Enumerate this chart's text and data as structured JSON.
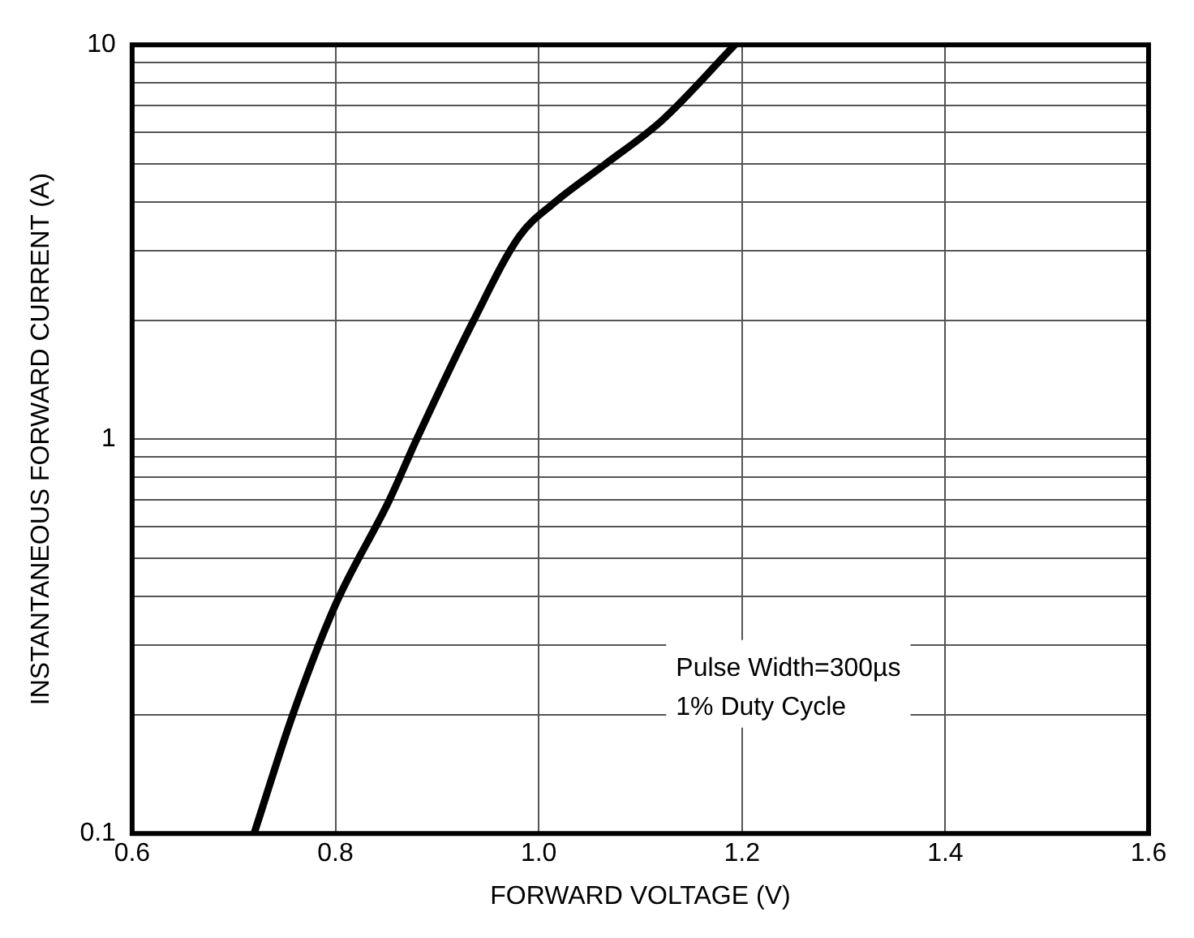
{
  "chart_data": {
    "type": "line",
    "xlabel": "FORWARD VOLTAGE (V)",
    "ylabel": "INSTANTANEOUS FORWARD CURRENT (A)",
    "x": [
      0.72,
      0.758,
      0.8,
      0.853,
      0.88,
      0.936,
      0.981,
      1.015,
      1.065,
      1.121,
      1.193
    ],
    "series": [
      {
        "color": "#000000",
        "values": [
          0.1,
          0.2,
          0.38,
          0.7,
          1,
          2,
          3.27,
          3.97,
          4.97,
          6.42,
          10
        ]
      }
    ],
    "xlim": [
      0.6,
      1.6
    ],
    "xticks": [
      0.6,
      0.8,
      {
        "value": 1,
        "label": "1.0"
      },
      1.2,
      1.4,
      1.6
    ],
    "ylim": [
      0.1,
      10
    ],
    "log": "y",
    "yticks": [
      0.1,
      {
        "value": 0.2,
        "label": null
      },
      {
        "value": 0.3,
        "label": null
      },
      {
        "value": 0.4,
        "label": null
      },
      {
        "value": 0.5,
        "label": null
      },
      {
        "value": 0.6,
        "label": null
      },
      {
        "value": 0.7,
        "label": null
      },
      {
        "value": 0.8,
        "label": null
      },
      {
        "value": 0.9,
        "label": null
      },
      1,
      {
        "value": 2,
        "label": null
      },
      {
        "value": 3,
        "label": null
      },
      {
        "value": 4,
        "label": null
      },
      {
        "value": 5,
        "label": null
      },
      {
        "value": 6,
        "label": null
      },
      {
        "value": 7,
        "label": null
      },
      {
        "value": 8,
        "label": null
      },
      {
        "value": 9,
        "label": null
      },
      10
    ],
    "grid": true,
    "legend": false,
    "marker": "none",
    "line_style": "solid",
    "annotations": [
      "Pulse Width=300µs",
      "1% Duty Cycle"
    ]
  }
}
